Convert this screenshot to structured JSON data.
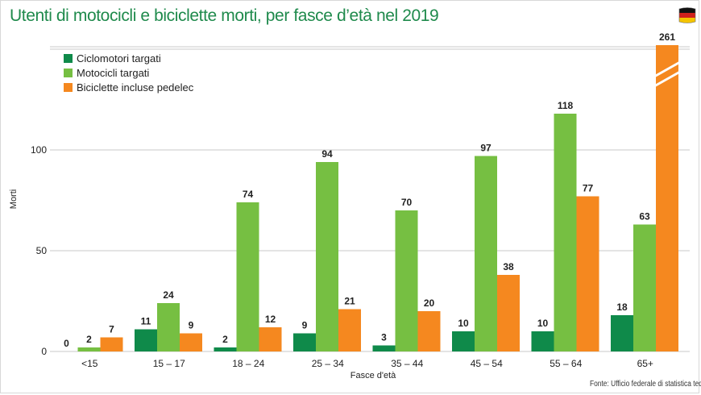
{
  "colors": {
    "ciclomotori": "#0f8a4a",
    "motocicli": "#76bf42",
    "biciclette": "#f5881f",
    "title": "#1f8a4c",
    "grid": "#c9c9c9"
  },
  "source": "Fonte: Ufficio federale di statistica tedes",
  "flag_icon": "germany-flag-icon",
  "chart_data": {
    "type": "bar",
    "title": "Utenti di motocicli e biciclette morti, per fasce d’età nel 2019",
    "xlabel": "Fasce d'età",
    "ylabel": "Morti",
    "ylim": [
      0,
      150
    ],
    "yticks": [
      0,
      50,
      100
    ],
    "grid": true,
    "legend_position": "top-left",
    "categories": [
      "<15",
      "15 – 17",
      "18 – 24",
      "25 – 34",
      "35 – 44",
      "45 – 54",
      "55 – 64",
      "65+"
    ],
    "series": [
      {
        "name": "Ciclomotori targati",
        "color": "#0f8a4a",
        "values": [
          0,
          11,
          2,
          9,
          3,
          10,
          10,
          18
        ]
      },
      {
        "name": "Motocicli targati",
        "color": "#76bf42",
        "values": [
          2,
          24,
          74,
          94,
          70,
          97,
          118,
          63
        ]
      },
      {
        "name": "Biciclette incluse pedelec",
        "color": "#f5881f",
        "values": [
          7,
          9,
          12,
          21,
          20,
          38,
          77,
          261
        ]
      }
    ],
    "axis_break": {
      "series": "Biciclette incluse pedelec",
      "category": "65+",
      "note": "bar broken, exceeds axis range"
    }
  }
}
